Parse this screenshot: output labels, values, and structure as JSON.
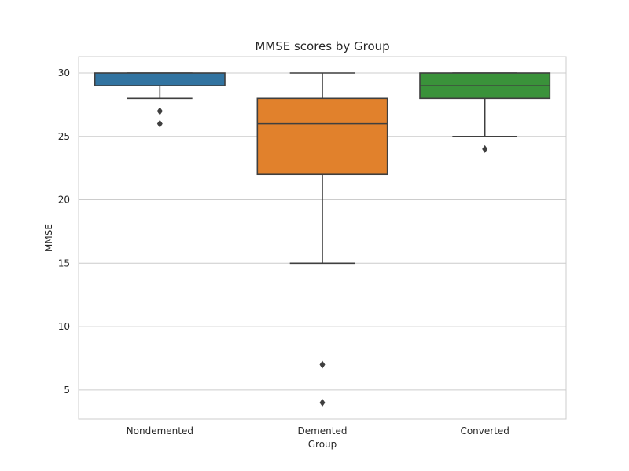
{
  "chart_data": {
    "type": "box",
    "title": "MMSE scores by Group",
    "xlabel": "Group",
    "ylabel": "MMSE",
    "ylim": [
      2.7,
      31.3
    ],
    "yticks": [
      5,
      10,
      15,
      20,
      25,
      30
    ],
    "grid": "horizontal",
    "categories": [
      "Nondemented",
      "Demented",
      "Converted"
    ],
    "boxes": [
      {
        "category": "Nondemented",
        "color": "#3274a1",
        "whisker_low": 28,
        "q1": 29,
        "median": 29,
        "q3": 30,
        "whisker_high": 30,
        "outliers": [
          27,
          27,
          26
        ]
      },
      {
        "category": "Demented",
        "color": "#e1812c",
        "whisker_low": 15,
        "q1": 22,
        "median": 26,
        "q3": 28,
        "whisker_high": 30,
        "outliers": [
          7,
          4
        ]
      },
      {
        "category": "Converted",
        "color": "#3a923a",
        "whisker_low": 25,
        "q1": 28,
        "median": 29,
        "q3": 30,
        "whisker_high": 30,
        "outliers": [
          24
        ]
      }
    ]
  }
}
